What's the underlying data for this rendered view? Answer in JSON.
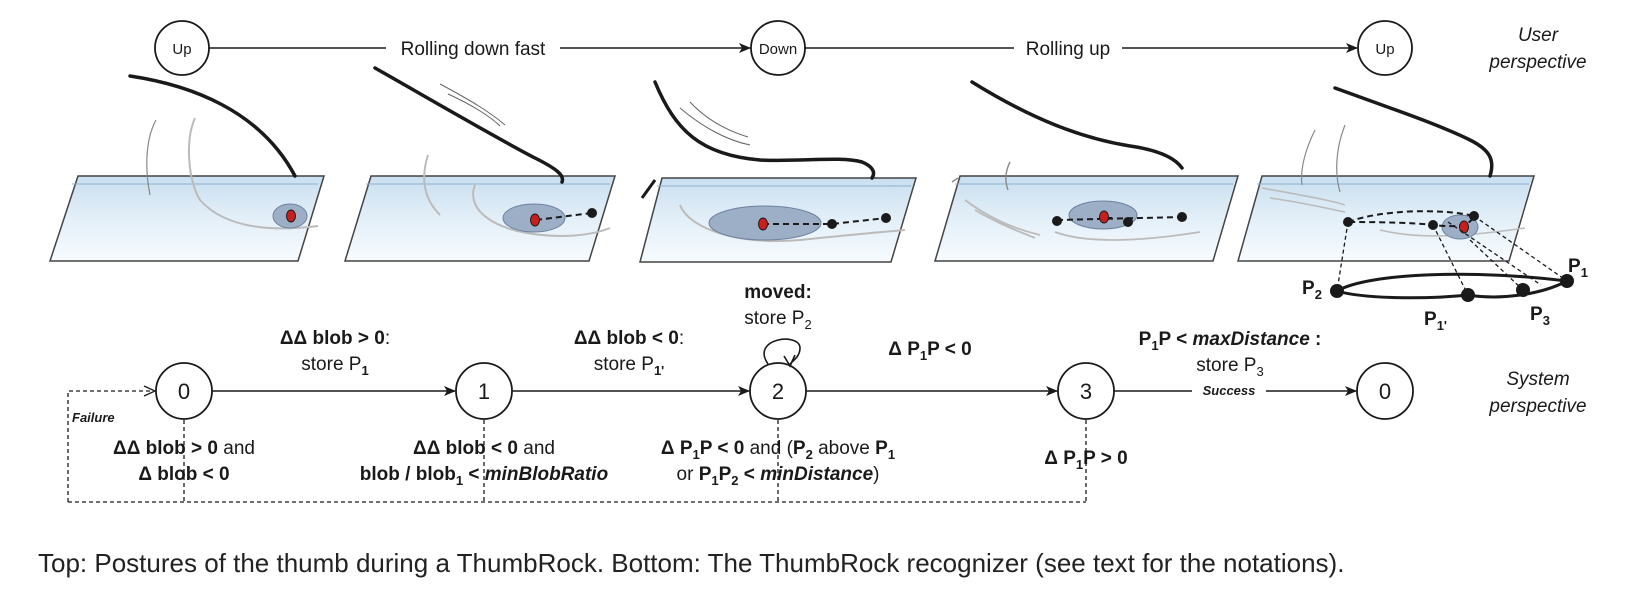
{
  "top": {
    "states": [
      "Up",
      "Down",
      "Up"
    ],
    "transitions": [
      "Rolling down fast",
      "Rolling up"
    ],
    "perspective_lines": [
      "User",
      "perspective"
    ]
  },
  "bottom": {
    "states": [
      "0",
      "1",
      "2",
      "3",
      "0"
    ],
    "perspective_lines": [
      "System",
      "perspective"
    ],
    "failure": "Failure",
    "success": "Success",
    "t01": {
      "main": "ΔΔ blob > 0",
      "colon": ":",
      "store": "store P",
      "sub": "1"
    },
    "t12": {
      "main": "ΔΔ blob < 0",
      "colon": ":",
      "store": "store P",
      "sub": "1'"
    },
    "loop": {
      "title": "moved:",
      "store": "store P",
      "sub": "2"
    },
    "t23": {
      "a": "Δ P",
      "sub": "1",
      "b": "P < 0"
    },
    "t30": {
      "a": "P",
      "sub": "1",
      "b": "P < ",
      "c": "maxDistance",
      "d": " :",
      "store": "store P",
      "ssub": "3"
    },
    "f0": {
      "l1a": "ΔΔ blob > 0",
      "l1b": "  and",
      "l2": "Δ blob < 0"
    },
    "f1": {
      "l1a": "ΔΔ blob < 0",
      "l1b": "  and",
      "l2a": "blob / blob",
      "l2sub": "1",
      "l2b": " < ",
      "l2c": "minBlobRatio"
    },
    "f2": {
      "a": "Δ P",
      "asub": "1",
      "b": "P < 0",
      "c": "  and (",
      "d": "P",
      "dsub": "2",
      "e": " above ",
      "f": "P",
      "fsub": "1",
      "g": "or ",
      "h": "P",
      "hsub": "1",
      "i": "P",
      "isub": "2",
      "j": " < ",
      "k": "minDistance",
      "l": ")"
    },
    "f3": {
      "a": "Δ P",
      "sub": "1",
      "b": "P > 0"
    }
  },
  "points": {
    "p1": "P",
    "p1sub": "1",
    "p2": "P",
    "p2sub": "2",
    "p1p": "P",
    "p1psub": "1'",
    "p3": "P",
    "p3sub": "3"
  },
  "caption": "Top: Postures of the thumb during a ThumbRock. Bottom: The ThumbRock recognizer (see text for the notations).",
  "colors": {
    "surface_top": "#d5e6f3",
    "surface_bottom": "#f4f9fd",
    "blob": "#9dafc6",
    "contact_point": "#c81e1e",
    "line": "#1a1a1a"
  }
}
